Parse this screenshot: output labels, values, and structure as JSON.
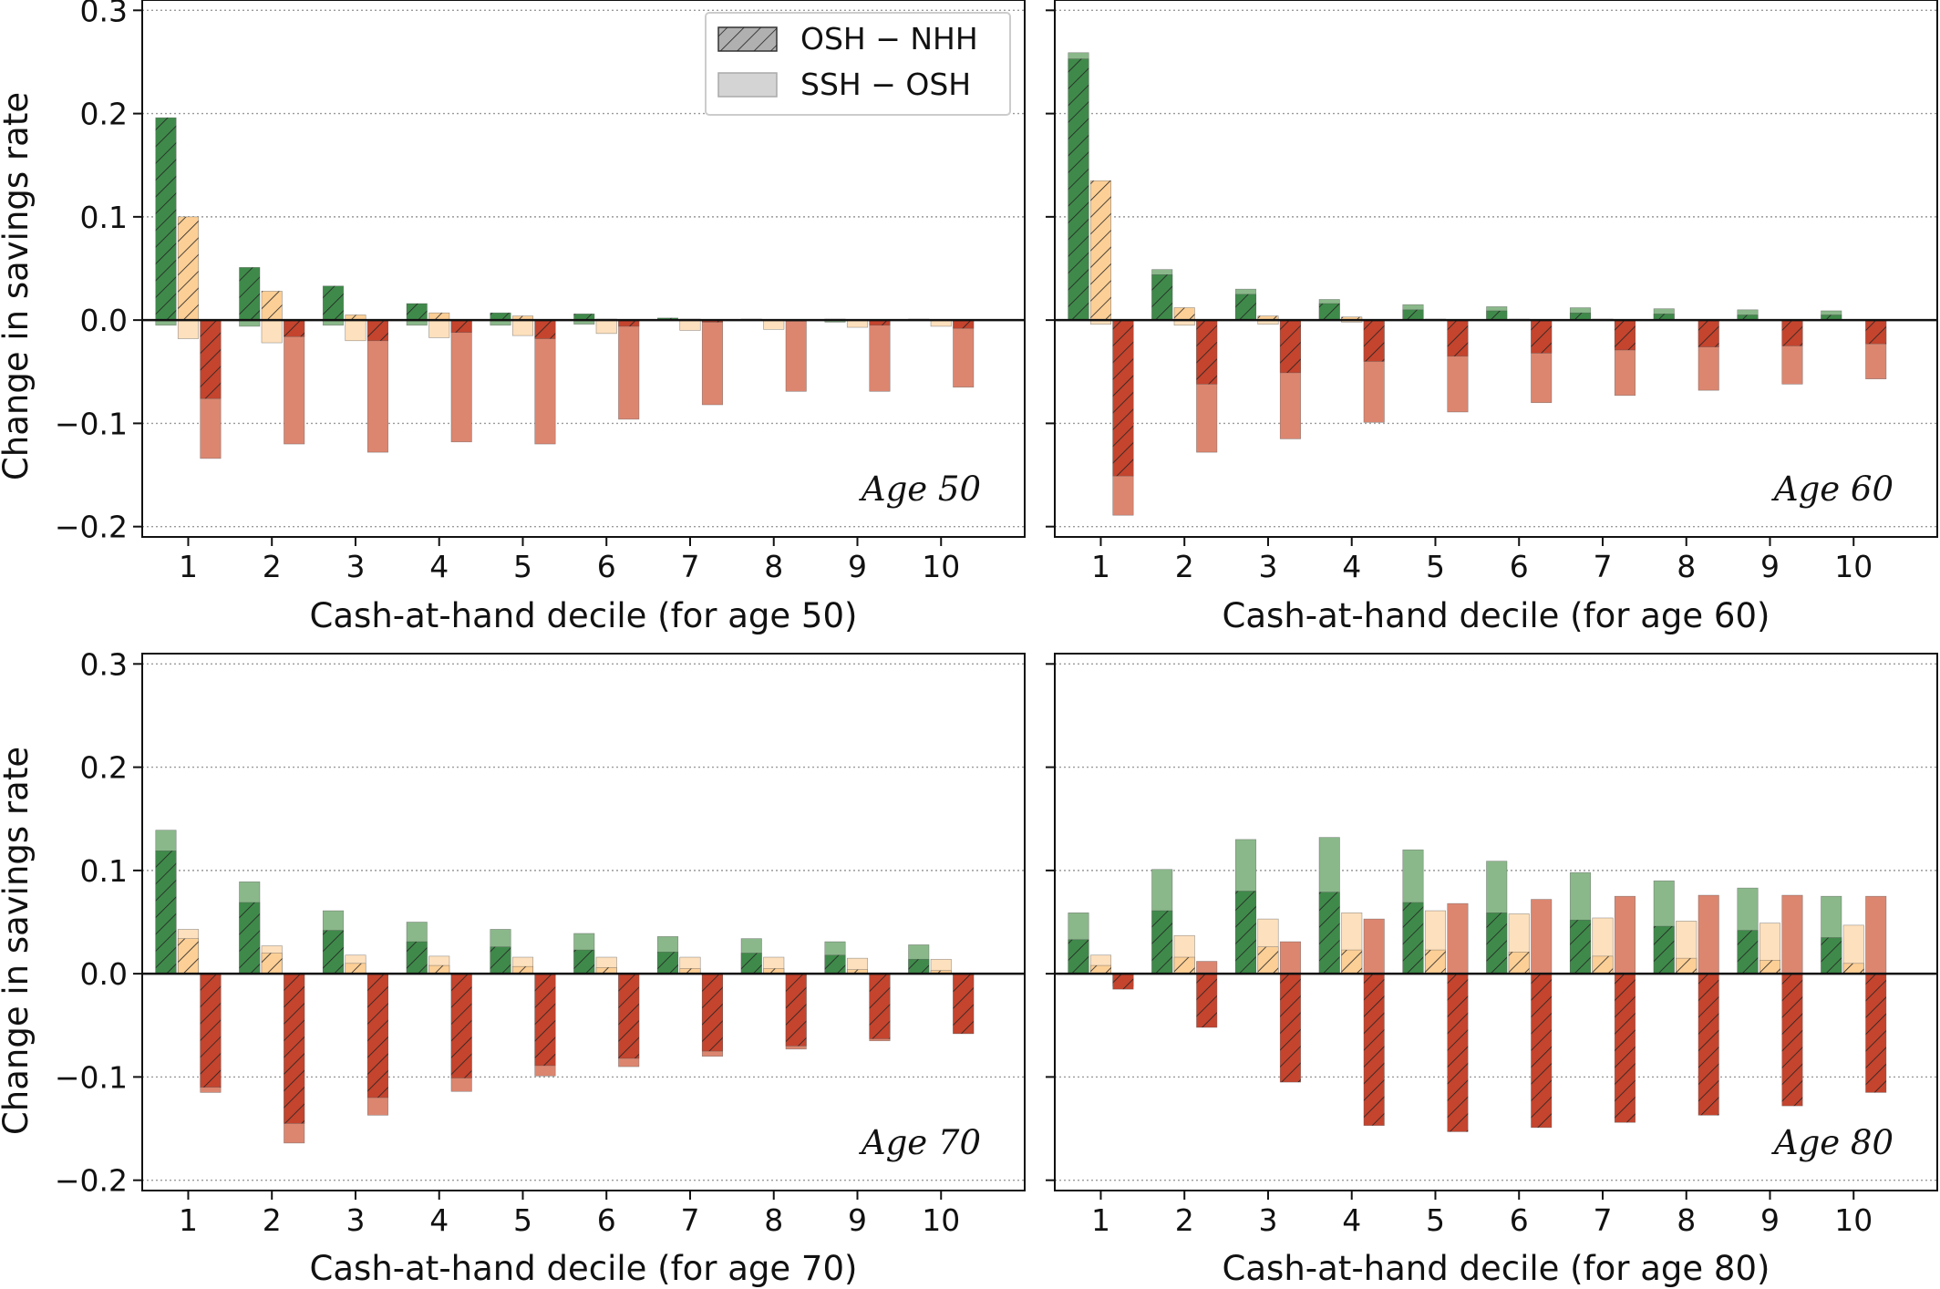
{
  "legend": {
    "items": [
      {
        "label": "OSH − NHH",
        "style": "hatched"
      },
      {
        "label": "SSH − OSH",
        "style": "solid"
      }
    ]
  },
  "colors": {
    "green": "#3f8a4a",
    "green_light": "#8ab88a",
    "orange": "#fccf96",
    "orange_light": "#fde0bd",
    "red": "#c4442e",
    "red_light": "#dc8670",
    "legend_swatch": "#c8c8c8"
  },
  "chart_data": [
    {
      "type": "bar",
      "panel": "Age 50",
      "annotation": "Age 50",
      "xlabel": "Cash-at-hand decile (for age 50)",
      "ylabel": "Change in savings rate",
      "categories": [
        "1",
        "2",
        "3",
        "4",
        "5",
        "6",
        "7",
        "8",
        "9",
        "10"
      ],
      "ylim": [
        -0.21,
        0.31
      ],
      "yticks": [
        "−0.2",
        "−0.1",
        "0.0",
        "0.1",
        "0.2",
        "0.3"
      ],
      "grid": "horizontal-dotted",
      "legend_position": "top-right",
      "series": [
        {
          "name": "green",
          "a": [
            0.196,
            0.051,
            0.033,
            0.016,
            0.007,
            0.006,
            0.002,
            0.001,
            0.001,
            0.001
          ],
          "b": [
            -0.005,
            -0.006,
            -0.005,
            -0.005,
            -0.005,
            -0.004,
            0.0,
            0.0,
            -0.002,
            0.0
          ]
        },
        {
          "name": "orange",
          "a": [
            0.1,
            0.028,
            0.005,
            0.007,
            0.004,
            0.001,
            0.001,
            0.0,
            0.0,
            0.0
          ],
          "b": [
            -0.018,
            -0.022,
            -0.02,
            -0.017,
            -0.015,
            -0.013,
            -0.01,
            -0.009,
            -0.007,
            -0.006
          ]
        },
        {
          "name": "red",
          "a": [
            -0.076,
            -0.016,
            -0.02,
            -0.012,
            -0.018,
            -0.006,
            -0.002,
            -0.001,
            -0.005,
            -0.008
          ],
          "b": [
            -0.134,
            -0.12,
            -0.128,
            -0.118,
            -0.12,
            -0.096,
            -0.082,
            -0.069,
            -0.069,
            -0.065
          ]
        }
      ]
    },
    {
      "type": "bar",
      "panel": "Age 60",
      "annotation": "Age 60",
      "xlabel": "Cash-at-hand decile (for age 60)",
      "ylabel": "",
      "categories": [
        "1",
        "2",
        "3",
        "4",
        "5",
        "6",
        "7",
        "8",
        "9",
        "10"
      ],
      "ylim": [
        -0.21,
        0.31
      ],
      "yticks": [],
      "grid": "horizontal-dotted",
      "series": [
        {
          "name": "green",
          "a": [
            0.253,
            0.044,
            0.025,
            0.016,
            0.01,
            0.009,
            0.007,
            0.006,
            0.005,
            0.005
          ],
          "b": [
            0.259,
            0.049,
            0.03,
            0.02,
            0.015,
            0.013,
            0.012,
            0.011,
            0.01,
            0.009
          ]
        },
        {
          "name": "orange",
          "a": [
            0.135,
            0.012,
            0.004,
            0.003,
            0.001,
            0.001,
            0.001,
            0.0,
            0.0,
            0.0
          ],
          "b": [
            -0.004,
            -0.005,
            -0.004,
            -0.002,
            0.0,
            0.0,
            0.0,
            0.0,
            0.0,
            0.0
          ]
        },
        {
          "name": "red",
          "a": [
            -0.151,
            -0.062,
            -0.051,
            -0.04,
            -0.035,
            -0.032,
            -0.029,
            -0.026,
            -0.025,
            -0.023
          ],
          "b": [
            -0.189,
            -0.128,
            -0.115,
            -0.099,
            -0.089,
            -0.08,
            -0.073,
            -0.068,
            -0.062,
            -0.057
          ]
        }
      ]
    },
    {
      "type": "bar",
      "panel": "Age 70",
      "annotation": "Age 70",
      "xlabel": "Cash-at-hand decile (for age 70)",
      "ylabel": "Change in savings rate",
      "categories": [
        "1",
        "2",
        "3",
        "4",
        "5",
        "6",
        "7",
        "8",
        "9",
        "10"
      ],
      "ylim": [
        -0.21,
        0.31
      ],
      "yticks": [
        "−0.2",
        "−0.1",
        "0.0",
        "0.1",
        "0.2",
        "0.3"
      ],
      "grid": "horizontal-dotted",
      "series": [
        {
          "name": "green",
          "a": [
            0.119,
            0.069,
            0.042,
            0.031,
            0.026,
            0.023,
            0.021,
            0.02,
            0.018,
            0.014
          ],
          "b": [
            0.139,
            0.089,
            0.061,
            0.05,
            0.043,
            0.039,
            0.036,
            0.034,
            0.031,
            0.028
          ]
        },
        {
          "name": "orange",
          "a": [
            0.034,
            0.02,
            0.01,
            0.008,
            0.007,
            0.006,
            0.005,
            0.005,
            0.004,
            0.003
          ],
          "b": [
            0.043,
            0.027,
            0.018,
            0.017,
            0.016,
            0.016,
            0.016,
            0.016,
            0.015,
            0.014
          ]
        },
        {
          "name": "red",
          "a": [
            -0.11,
            -0.145,
            -0.12,
            -0.101,
            -0.089,
            -0.082,
            -0.075,
            -0.07,
            -0.063,
            -0.058
          ],
          "b": [
            -0.115,
            -0.164,
            -0.137,
            -0.114,
            -0.099,
            -0.09,
            -0.08,
            -0.073,
            -0.065,
            -0.058
          ]
        }
      ]
    },
    {
      "type": "bar",
      "panel": "Age 80",
      "annotation": "Age 80",
      "xlabel": "Cash-at-hand decile (for age 80)",
      "ylabel": "",
      "categories": [
        "1",
        "2",
        "3",
        "4",
        "5",
        "6",
        "7",
        "8",
        "9",
        "10"
      ],
      "ylim": [
        -0.21,
        0.31
      ],
      "yticks": [],
      "grid": "horizontal-dotted",
      "series": [
        {
          "name": "green",
          "a": [
            0.033,
            0.061,
            0.08,
            0.079,
            0.069,
            0.059,
            0.052,
            0.046,
            0.042,
            0.035
          ],
          "b": [
            0.059,
            0.101,
            0.13,
            0.132,
            0.12,
            0.109,
            0.098,
            0.09,
            0.083,
            0.075
          ]
        },
        {
          "name": "orange",
          "a": [
            0.008,
            0.016,
            0.026,
            0.023,
            0.023,
            0.021,
            0.017,
            0.015,
            0.013,
            0.01
          ],
          "b": [
            0.018,
            0.037,
            0.053,
            0.059,
            0.061,
            0.058,
            0.054,
            0.051,
            0.049,
            0.047
          ]
        },
        {
          "name": "red",
          "a": [
            -0.015,
            -0.052,
            -0.105,
            -0.147,
            -0.153,
            -0.149,
            -0.144,
            -0.137,
            -0.128,
            -0.115
          ],
          "b": [
            -0.012,
            0.012,
            0.031,
            0.053,
            0.068,
            0.072,
            0.075,
            0.076,
            0.076,
            0.075
          ]
        }
      ]
    }
  ]
}
